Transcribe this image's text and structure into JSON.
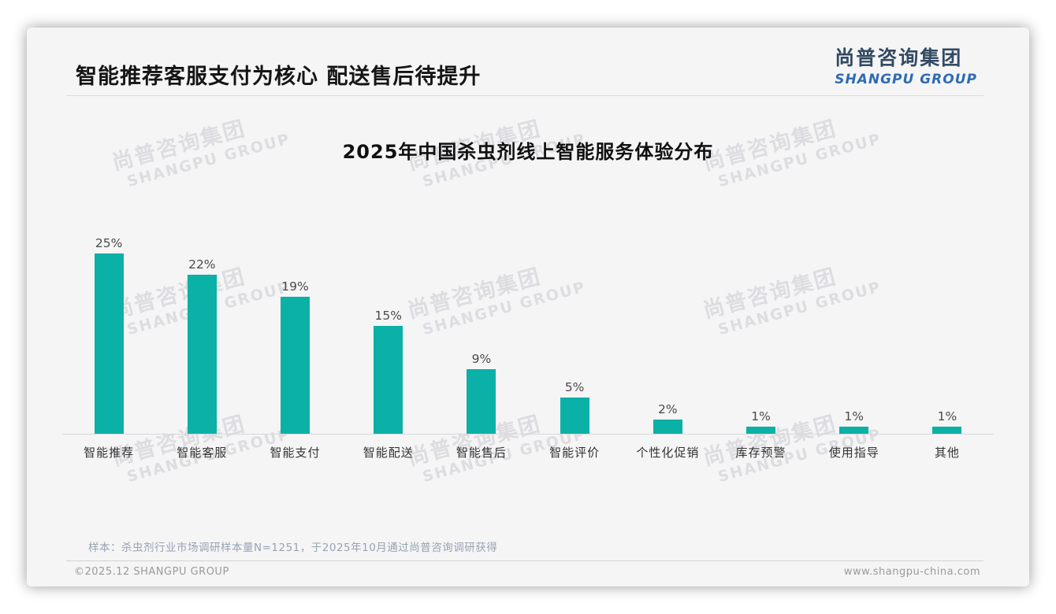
{
  "page": {
    "title": "智能推荐客服支付为核心 配送售后待提升",
    "logo": {
      "cn": "尚普咨询集团",
      "en": "SHANGPU GROUP"
    },
    "watermark": {
      "cn": "尚普咨询集团",
      "en": "SHANGPU GROUP"
    },
    "footer": {
      "sample_note": "样本：杀虫剂行业市场调研样本量N=1251，于2025年10月通过尚普咨询调研获得",
      "copyright": "©2025.12 SHANGPU GROUP",
      "website": "www.shangpu-china.com"
    }
  },
  "chart_data": {
    "type": "bar",
    "title": "2025年中国杀虫剂线上智能服务体验分布",
    "categories": [
      "智能推荐",
      "智能客服",
      "智能支付",
      "智能配送",
      "智能售后",
      "智能评价",
      "个性化促销",
      "库存预警",
      "使用指导",
      "其他"
    ],
    "values": [
      25,
      22,
      19,
      15,
      9,
      5,
      2,
      1,
      1,
      1
    ],
    "unit": "%",
    "value_labels": true,
    "bar_color": "#0bb0a6",
    "xlabel": "",
    "ylabel": "",
    "ylim": [
      0,
      27
    ],
    "grid": false,
    "legend": "none"
  }
}
